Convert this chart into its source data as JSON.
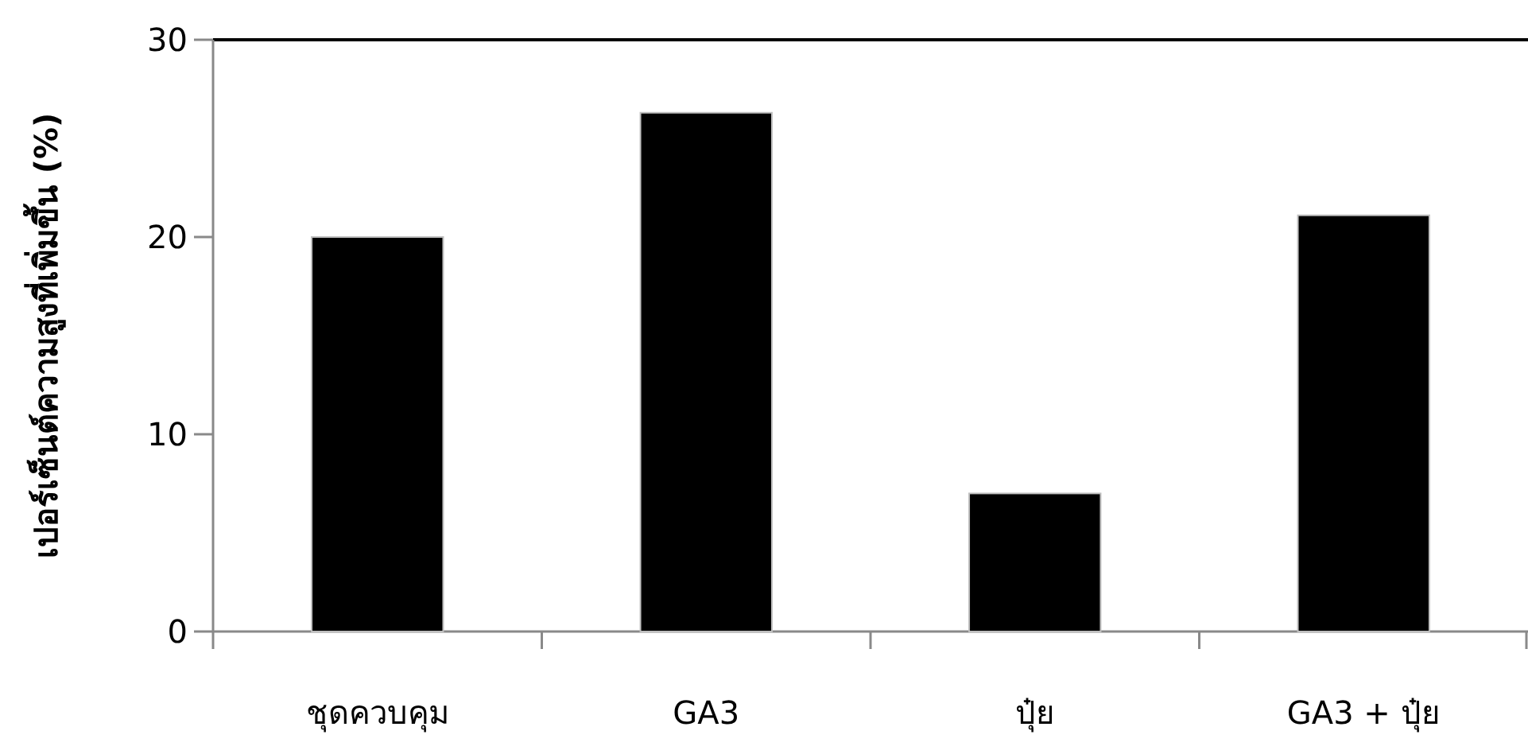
{
  "chart_data": {
    "type": "bar",
    "ylabel": "เปอร์เซ็นต์ความสูงที่เพิ่มขึ้น (%)",
    "categories": [
      "ชุดควบคุม",
      "GA3",
      "ปุ๋ย",
      "GA3 + ปุ๋ย"
    ],
    "values": [
      20,
      26.3,
      7,
      21.1
    ],
    "color": "#000000",
    "ylim": [
      0,
      30
    ],
    "yticks": [
      0,
      10,
      20,
      30
    ]
  }
}
